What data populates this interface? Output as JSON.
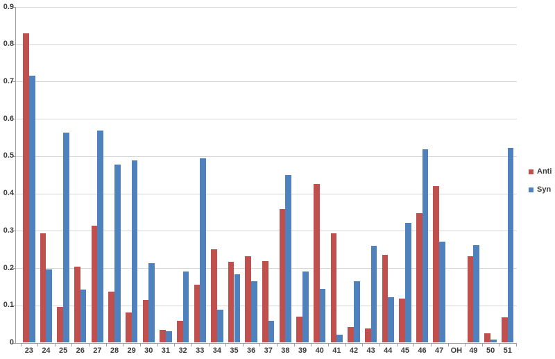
{
  "chart_data": {
    "type": "bar",
    "title": "",
    "xlabel": "",
    "ylabel": "",
    "categories": [
      "23",
      "24",
      "25",
      "26",
      "27",
      "28",
      "29",
      "30",
      "31",
      "32",
      "33",
      "34",
      "35",
      "36",
      "37",
      "38",
      "39",
      "40",
      "41",
      "42",
      "43",
      "44",
      "45",
      "46",
      "47",
      "OH",
      "49",
      "50",
      "51"
    ],
    "series": [
      {
        "name": "Anti",
        "color": "#C0504D",
        "values": [
          0.83,
          0.293,
          0.095,
          0.204,
          0.313,
          0.137,
          0.081,
          0.114,
          0.034,
          0.059,
          0.155,
          0.251,
          0.217,
          0.232,
          0.219,
          0.359,
          0.07,
          0.426,
          0.293,
          0.042,
          0.039,
          0.235,
          0.119,
          0.347,
          0.42,
          0,
          0.232,
          0.025,
          0.068
        ]
      },
      {
        "name": "Syn",
        "color": "#4F81BD",
        "values": [
          0.715,
          0.196,
          0.564,
          0.143,
          0.569,
          0.477,
          0.489,
          0.213,
          0.03,
          0.191,
          0.495,
          0.088,
          0.184,
          0.164,
          0.058,
          0.449,
          0.19,
          0.144,
          0.022,
          0.165,
          0.259,
          0.121,
          0.322,
          0.519,
          0.271,
          0,
          0.262,
          0.008,
          0.523
        ]
      }
    ],
    "ylim": [
      0,
      0.9
    ],
    "ytick_step": 0.1,
    "ytick_labels": [
      "0",
      "0.1",
      "0.2",
      "0.3",
      "0.4",
      "0.5",
      "0.6",
      "0.7",
      "0.8",
      "0.9"
    ],
    "grid": true,
    "legend_position": "right",
    "background_color": "#FFFFFF",
    "gridline_color": "#D6D6D6",
    "axis_color": "#9E9E9E",
    "text_color": "#3B3B3B"
  }
}
